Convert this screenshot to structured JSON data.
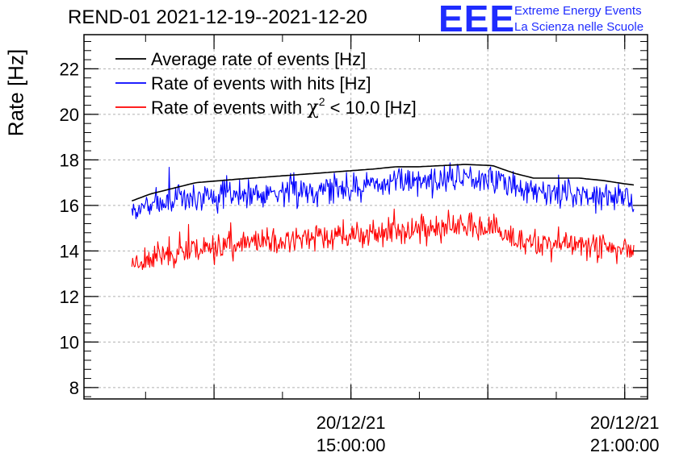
{
  "title": "REND-01 2021-12-19--2021-12-20",
  "logo": {
    "mark": "EEE",
    "line1": "Extreme Energy Events",
    "line2": "La Scienza nelle Scuole"
  },
  "colors": {
    "black": "#000000",
    "blue": "#0000ff",
    "red": "#ff0000",
    "grid": "#b0b0b0",
    "logo": "#1f2cff"
  },
  "chart_data": {
    "type": "line",
    "title": "REND-01 2021-12-19--2021-12-20",
    "ylabel": "Rate [Hz]",
    "xlabel": "",
    "ylim": [
      7.5,
      23.5
    ],
    "xlim_hours": [
      9.15,
      21.5
    ],
    "yticks": [
      8,
      10,
      12,
      14,
      16,
      18,
      20,
      22
    ],
    "xticks": [
      {
        "hour": 15.0,
        "date": "20/12/21",
        "time": "15:00:00"
      },
      {
        "hour": 21.0,
        "date": "20/12/21",
        "time": "21:00:00"
      }
    ],
    "grid": true,
    "legend_position": "top-left",
    "series": [
      {
        "name": "Average rate of events [Hz]",
        "color": "black",
        "style": "smooth",
        "x": [
          10.2,
          10.6,
          11.0,
          11.6,
          12.5,
          13.5,
          14.5,
          15.5,
          16.0,
          16.5,
          17.0,
          17.5,
          18.1,
          18.6,
          19.0,
          19.5,
          20.0,
          20.5,
          21.0,
          21.2
        ],
        "y": [
          16.2,
          16.5,
          16.7,
          17.0,
          17.15,
          17.3,
          17.45,
          17.6,
          17.7,
          17.7,
          17.75,
          17.8,
          17.75,
          17.4,
          17.2,
          17.2,
          17.2,
          17.1,
          16.95,
          16.9
        ],
        "noise": 0
      },
      {
        "name": "Rate of events with hits [Hz]",
        "color": "blue",
        "style": "noisy",
        "x": [
          10.2,
          10.6,
          11.0,
          11.6,
          12.5,
          13.5,
          14.5,
          15.5,
          16.0,
          16.5,
          17.0,
          17.5,
          18.1,
          18.6,
          19.0,
          19.5,
          20.0,
          20.5,
          21.0,
          21.2
        ],
        "y": [
          15.7,
          16.0,
          16.2,
          16.35,
          16.5,
          16.6,
          16.75,
          16.9,
          17.1,
          17.1,
          17.15,
          17.3,
          17.2,
          16.8,
          16.6,
          16.55,
          16.55,
          16.5,
          16.3,
          16.2
        ],
        "noise": 0.45,
        "seed": 7
      },
      {
        "name": "Rate of events with χ² < 10.0 [Hz]",
        "color": "red",
        "style": "noisy",
        "x": [
          10.2,
          10.6,
          11.0,
          11.6,
          12.5,
          13.5,
          14.5,
          15.5,
          16.0,
          16.5,
          17.0,
          17.5,
          18.1,
          18.6,
          19.0,
          19.5,
          20.0,
          20.5,
          21.0,
          21.2
        ],
        "y": [
          13.5,
          13.7,
          13.9,
          14.1,
          14.3,
          14.45,
          14.6,
          14.75,
          14.9,
          14.95,
          15.0,
          15.1,
          14.9,
          14.5,
          14.3,
          14.3,
          14.3,
          14.2,
          14.05,
          13.95
        ],
        "noise": 0.42,
        "seed": 23
      }
    ],
    "legend": [
      {
        "text": "Average rate of events [Hz]",
        "color": "black"
      },
      {
        "text": "Rate of events with hits [Hz]",
        "color": "blue"
      },
      {
        "pre": "Rate of events with ",
        "chi": "χ",
        "sup": "2",
        "post": " < 10.0 [Hz]",
        "color": "red"
      }
    ]
  }
}
